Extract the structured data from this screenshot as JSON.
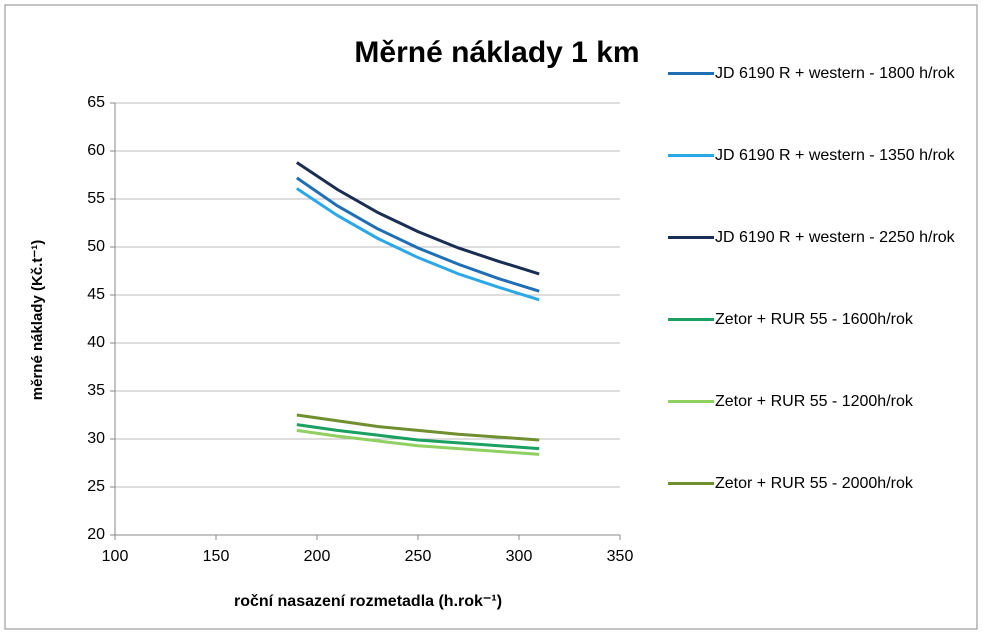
{
  "chart_data": {
    "type": "line",
    "title": "Měrné náklady 1 km",
    "x_label": "roční nasazení rozmetadla (h.rok⁻¹)",
    "y_label": "měrné náklady (Kč.t⁻¹)",
    "x": [
      190,
      210,
      230,
      250,
      270,
      290,
      310
    ],
    "series": [
      {
        "name": "JD 6190 R + western - 1800 h/rok",
        "color": "#1f6fb5",
        "values": [
          57.2,
          54.3,
          51.9,
          49.9,
          48.2,
          46.7,
          45.4
        ]
      },
      {
        "name": "JD 6190 R + western - 1350 h/rok",
        "color": "#2aa8e8",
        "values": [
          56.1,
          53.3,
          50.9,
          48.9,
          47.2,
          45.8,
          44.5
        ]
      },
      {
        "name": "JD 6190 R + western - 2250 h/rok",
        "color": "#1a2e55",
        "values": [
          58.8,
          56.0,
          53.6,
          51.6,
          49.9,
          48.5,
          47.2
        ]
      },
      {
        "name": "Zetor + RUR 55 - 1600h/rok",
        "color": "#1aa060",
        "values": [
          31.5,
          30.9,
          30.4,
          29.9,
          29.6,
          29.3,
          29.0
        ]
      },
      {
        "name": "Zetor + RUR 55 - 1200h/rok",
        "color": "#8fd060",
        "values": [
          30.9,
          30.3,
          29.8,
          29.3,
          29.0,
          28.7,
          28.4
        ]
      },
      {
        "name": "Zetor + RUR 55 - 2000h/rok",
        "color": "#6f8f30",
        "values": [
          32.5,
          31.9,
          31.3,
          30.9,
          30.5,
          30.2,
          29.9
        ]
      }
    ],
    "xlim": [
      100,
      350
    ],
    "xticks": [
      100,
      150,
      200,
      250,
      300,
      350
    ],
    "ylim": [
      20,
      65
    ],
    "yticks": [
      20,
      25,
      30,
      35,
      40,
      45,
      50,
      55,
      60,
      65
    ],
    "grid": true,
    "legend": "right"
  }
}
